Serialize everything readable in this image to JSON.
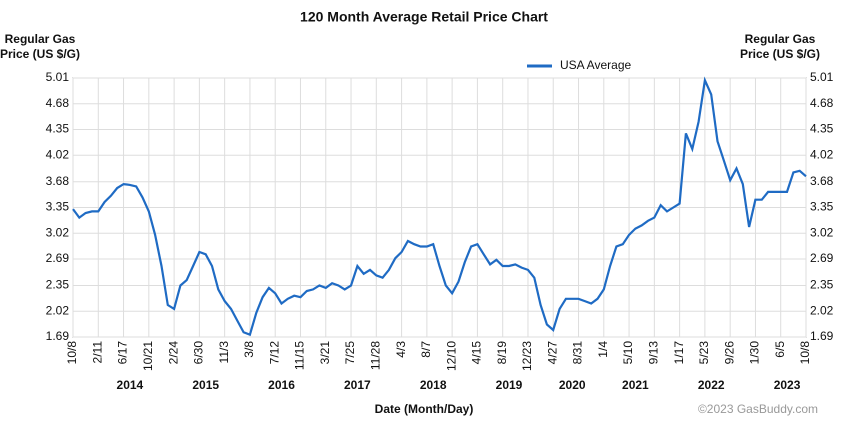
{
  "chart_data": {
    "type": "line",
    "title": "120 Month Average Retail Price Chart",
    "y_label_lines": [
      "Regular Gas",
      "Price (US $/G)"
    ],
    "y2_label_lines": [
      "Regular Gas",
      "Price (US $/G)"
    ],
    "x_label": "Date (Month/Day)",
    "credit": "©2023 GasBuddy.com",
    "legend": "top",
    "grid": true,
    "categories": [
      "10/8",
      null,
      null,
      null,
      "2/11",
      null,
      null,
      null,
      "6/17",
      null,
      null,
      null,
      "10/21",
      null,
      null,
      null,
      "2/24",
      null,
      null,
      null,
      "6/30",
      null,
      null,
      null,
      "11/3",
      null,
      null,
      null,
      "3/8",
      null,
      null,
      null,
      "7/12",
      null,
      null,
      null,
      "11/15",
      null,
      null,
      null,
      "3/21",
      null,
      null,
      null,
      "7/25",
      null,
      null,
      null,
      "11/28",
      null,
      null,
      null,
      "4/3",
      null,
      null,
      null,
      "8/7",
      null,
      null,
      null,
      "12/10",
      null,
      null,
      null,
      "4/15",
      null,
      null,
      null,
      "8/19",
      null,
      null,
      null,
      "12/23",
      null,
      null,
      null,
      "4/27",
      null,
      null,
      null,
      "8/31",
      null,
      null,
      null,
      "1/4",
      null,
      null,
      null,
      "5/10",
      null,
      null,
      null,
      "9/13",
      null,
      null,
      null,
      "1/17",
      null,
      null,
      null,
      "5/23",
      null,
      null,
      null,
      "9/26",
      null,
      null,
      null,
      "1/30",
      null,
      null,
      null,
      "6/5",
      null,
      null,
      null,
      "10/8"
    ],
    "year_ticks": [
      {
        "value": 9,
        "label": "2014"
      },
      {
        "value": 21,
        "label": "2015"
      },
      {
        "value": 33,
        "label": "2016"
      },
      {
        "value": 45,
        "label": "2017"
      },
      {
        "value": 57,
        "label": "2018"
      },
      {
        "value": 69,
        "label": "2019"
      },
      {
        "value": 79,
        "label": "2020"
      },
      {
        "value": 89,
        "label": "2021"
      },
      {
        "value": 101,
        "label": "2022"
      },
      {
        "value": 113,
        "label": "2023"
      }
    ],
    "series": [
      {
        "name": "USA Average",
        "color": "#1f6bc4",
        "values": [
          3.33,
          3.22,
          3.28,
          3.3,
          3.3,
          3.42,
          3.5,
          3.6,
          3.65,
          3.64,
          3.62,
          3.48,
          3.3,
          3.0,
          2.6,
          2.1,
          2.05,
          2.35,
          2.42,
          2.6,
          2.78,
          2.75,
          2.6,
          2.3,
          2.15,
          2.05,
          1.9,
          1.75,
          1.72,
          2.0,
          2.2,
          2.32,
          2.25,
          2.12,
          2.18,
          2.22,
          2.2,
          2.28,
          2.3,
          2.35,
          2.32,
          2.38,
          2.35,
          2.3,
          2.35,
          2.6,
          2.5,
          2.55,
          2.48,
          2.45,
          2.55,
          2.7,
          2.78,
          2.92,
          2.88,
          2.85,
          2.85,
          2.88,
          2.6,
          2.35,
          2.25,
          2.4,
          2.65,
          2.85,
          2.88,
          2.75,
          2.62,
          2.68,
          2.6,
          2.6,
          2.62,
          2.58,
          2.55,
          2.45,
          2.1,
          1.85,
          1.78,
          2.05,
          2.18,
          2.18,
          2.18,
          2.15,
          2.12,
          2.18,
          2.3,
          2.6,
          2.85,
          2.88,
          3.0,
          3.08,
          3.12,
          3.18,
          3.22,
          3.38,
          3.3,
          3.35,
          3.4,
          4.3,
          4.1,
          4.45,
          4.98,
          4.8,
          4.2,
          3.95,
          3.7,
          3.85,
          3.65,
          3.1,
          3.45,
          3.45,
          3.55,
          3.55,
          3.55,
          3.55,
          3.8,
          3.82,
          3.75
        ]
      }
    ],
    "ylim": [
      1.69,
      5.01
    ],
    "yticks": [
      1.69,
      2.02,
      2.35,
      2.69,
      3.02,
      3.35,
      3.68,
      4.02,
      4.35,
      4.68,
      5.01
    ]
  }
}
